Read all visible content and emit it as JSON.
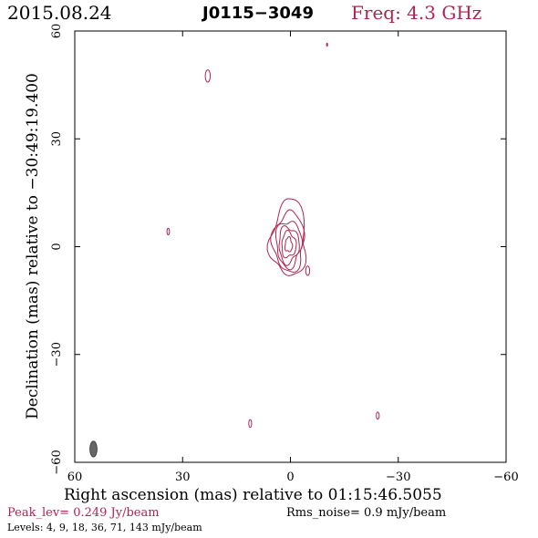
{
  "header": {
    "date": "2015.08.24",
    "source": "J0115−3049",
    "freq": "Freq: 4.3 GHz"
  },
  "footer": {
    "peak": "Peak_lev=  0.249 Jy/beam",
    "rms": "Rms_noise=   0.9 mJy/beam",
    "levels": "Levels:   4,   9,  18,  36,  71, 143 mJy/beam"
  },
  "colors": {
    "contour": "#b0254f",
    "beam": "#666666",
    "axis": "#000000"
  },
  "chart_data": {
    "type": "contour",
    "xlabel": "Right ascension (mas) relative to 01:15:46.5055",
    "ylabel": "Declination (mas) relative to −30:49:19.400",
    "xlim": [
      60,
      -60
    ],
    "ylim": [
      -60,
      60
    ],
    "x_ticks": [
      60,
      30,
      0,
      -30,
      -60
    ],
    "x_tick_labels": [
      "60",
      "30",
      "0",
      "−30",
      "−60"
    ],
    "y_ticks": [
      -60,
      -30,
      0,
      30,
      60
    ],
    "y_tick_labels": [
      "−60",
      "−30",
      "0",
      "30",
      "60"
    ],
    "contour_levels_mjy": [
      4,
      9,
      18,
      36,
      71,
      143
    ],
    "peak_jy_per_beam": 0.249,
    "rms_mjy_per_beam": 0.9,
    "core": {
      "center": [
        0.5,
        0.5
      ],
      "rings": [
        {
          "level": 143,
          "r": [
            1.0,
            2.0
          ]
        },
        {
          "level": 71,
          "r": [
            2.0,
            3.5
          ]
        },
        {
          "level": 36,
          "r": [
            2.8,
            5.0
          ]
        },
        {
          "level": 18,
          "r": [
            3.5,
            6.0
          ]
        },
        {
          "level": 9,
          "r": [
            4.3,
            7.2
          ]
        },
        {
          "level": 4,
          "r": [
            5.0,
            8.5
          ]
        }
      ]
    },
    "isolated_components": [
      {
        "x": 23.0,
        "y": 47.5,
        "rx": 0.7,
        "ry": 1.7
      },
      {
        "x": -10.2,
        "y": 56.2,
        "rx": 0.15,
        "ry": 0.4
      },
      {
        "x": 34.0,
        "y": 4.2,
        "rx": 0.35,
        "ry": 0.9
      },
      {
        "x": -4.8,
        "y": -6.7,
        "rx": 0.55,
        "ry": 1.3
      },
      {
        "x": 11.2,
        "y": -49.2,
        "rx": 0.4,
        "ry": 1.1
      },
      {
        "x": -24.3,
        "y": -47.0,
        "rx": 0.4,
        "ry": 1.0
      }
    ],
    "beam": {
      "x": 54.8,
      "y": -56.3,
      "major": 2.2,
      "minor": 1.0,
      "pa": 0
    }
  }
}
